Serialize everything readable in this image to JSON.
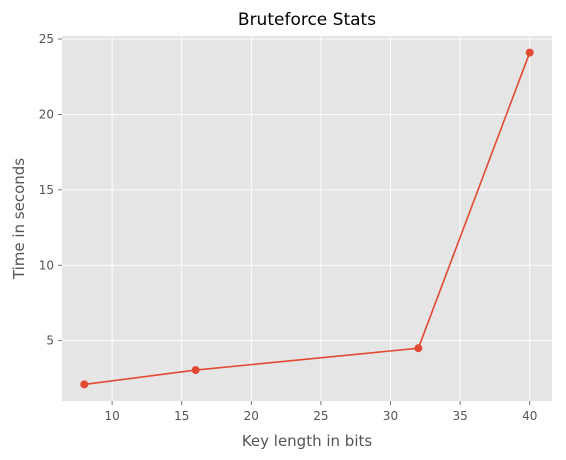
{
  "chart_data": {
    "type": "line",
    "title": "Bruteforce Stats",
    "xlabel": "Key length in bits",
    "ylabel": "Time in seconds",
    "x": [
      8,
      16,
      32,
      40
    ],
    "series": [
      {
        "values": [
          2.1,
          3.05,
          4.5,
          24.1
        ]
      }
    ],
    "xlim": [
      6.4,
      41.6
    ],
    "ylim": [
      1.0,
      25.2
    ],
    "xticks": [
      10,
      15,
      20,
      25,
      30,
      35,
      40
    ],
    "yticks": [
      5,
      10,
      15,
      20,
      25
    ],
    "grid": true,
    "marker": "circle",
    "colors": {
      "line": "#E24A33",
      "plot_background": "#E5E5E5",
      "grid": "#FFFFFF",
      "text": "#555555"
    }
  }
}
